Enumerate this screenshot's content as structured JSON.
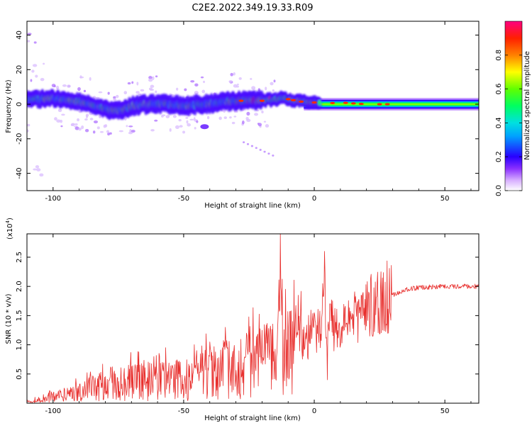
{
  "title": "C2E2.2022.349.19.33.R09",
  "chart_data": [
    {
      "type": "heatmap",
      "xlabel": "Height of straight line (km)",
      "ylabel": "Frequency (Hz)",
      "xlim": [
        -110,
        63
      ],
      "ylim": [
        -50,
        48
      ],
      "xticks": [
        -100,
        -50,
        0,
        50
      ],
      "yticks": [
        -40,
        -20,
        0,
        20,
        40
      ],
      "colorbar": {
        "label": "Normalized spectral amplitude",
        "range": [
          0,
          1
        ],
        "ticks": [
          0.0,
          0.2,
          0.4,
          0.6,
          0.8
        ],
        "colormap": [
          "#ffffff",
          "#b060ff",
          "#2800ff",
          "#00b4ff",
          "#00ff60",
          "#ffff00",
          "#ff3000",
          "#ff0080"
        ]
      },
      "ridge": [
        {
          "x": -110,
          "y": 2.5
        },
        {
          "x": -100,
          "y": 3.5
        },
        {
          "x": -90,
          "y": 1.5
        },
        {
          "x": -80,
          "y": -2.5
        },
        {
          "x": -75,
          "y": -4
        },
        {
          "x": -70,
          "y": -1
        },
        {
          "x": -60,
          "y": 0.5
        },
        {
          "x": -50,
          "y": -1
        },
        {
          "x": -40,
          "y": 0.5
        },
        {
          "x": -30,
          "y": 2
        },
        {
          "x": -20,
          "y": 2
        },
        {
          "x": -12,
          "y": 3.5
        },
        {
          "x": -5,
          "y": 1.5
        },
        {
          "x": 5,
          "y": 0.5
        },
        {
          "x": 10,
          "y": 1
        },
        {
          "x": 20,
          "y": 0
        },
        {
          "x": 30,
          "y": 0
        },
        {
          "x": 63,
          "y": 0
        }
      ]
    },
    {
      "type": "line",
      "xlabel": "Height of straight line (km)",
      "ylabel": "SNR (10 * v/v)",
      "y_scale_label": "(x10",
      "y_scale_exponent": "4",
      "y_scale_suffix": ")",
      "xlim": [
        -110,
        63
      ],
      "ylim": [
        0,
        2.9
      ],
      "xticks": [
        -100,
        -50,
        0,
        50
      ],
      "yticks": [
        0.5,
        1.0,
        1.5,
        2.0,
        2.5
      ],
      "color": "#e8302e",
      "envelope": [
        {
          "x": -110,
          "y": 0.02
        },
        {
          "x": -100,
          "y": 0.1
        },
        {
          "x": -90,
          "y": 0.2
        },
        {
          "x": -80,
          "y": 0.3
        },
        {
          "x": -70,
          "y": 0.35
        },
        {
          "x": -60,
          "y": 0.4
        },
        {
          "x": -50,
          "y": 0.4
        },
        {
          "x": -40,
          "y": 0.5
        },
        {
          "x": -30,
          "y": 0.6
        },
        {
          "x": -20,
          "y": 0.7
        },
        {
          "x": -15,
          "y": 0.75
        },
        {
          "x": -10,
          "y": 0.8
        },
        {
          "x": -5,
          "y": 1.05
        },
        {
          "x": 0,
          "y": 1.25
        },
        {
          "x": 5,
          "y": 1.45
        },
        {
          "x": 10,
          "y": 1.3
        },
        {
          "x": 15,
          "y": 1.4
        },
        {
          "x": 20,
          "y": 1.6
        },
        {
          "x": 25,
          "y": 1.75
        },
        {
          "x": 30,
          "y": 1.85
        },
        {
          "x": 35,
          "y": 1.95
        },
        {
          "x": 40,
          "y": 1.98
        },
        {
          "x": 50,
          "y": 2.0
        },
        {
          "x": 63,
          "y": 2.0
        }
      ],
      "peaks": [
        {
          "x": -78,
          "y": 0.62
        },
        {
          "x": -45,
          "y": 0.9
        },
        {
          "x": -40,
          "y": 1.05
        },
        {
          "x": -34,
          "y": 1.3
        },
        {
          "x": -26,
          "y": 1.2
        },
        {
          "x": -20,
          "y": 1.25
        },
        {
          "x": -13,
          "y": 2.9
        },
        {
          "x": -6,
          "y": 1.25
        },
        {
          "x": 0,
          "y": 1.55
        },
        {
          "x": 4,
          "y": 2.6
        },
        {
          "x": 5,
          "y": 0.4
        },
        {
          "x": 6,
          "y": 1.7
        },
        {
          "x": 10,
          "y": 1.0
        },
        {
          "x": 14,
          "y": 1.5
        },
        {
          "x": 18,
          "y": 1.85
        }
      ]
    }
  ]
}
